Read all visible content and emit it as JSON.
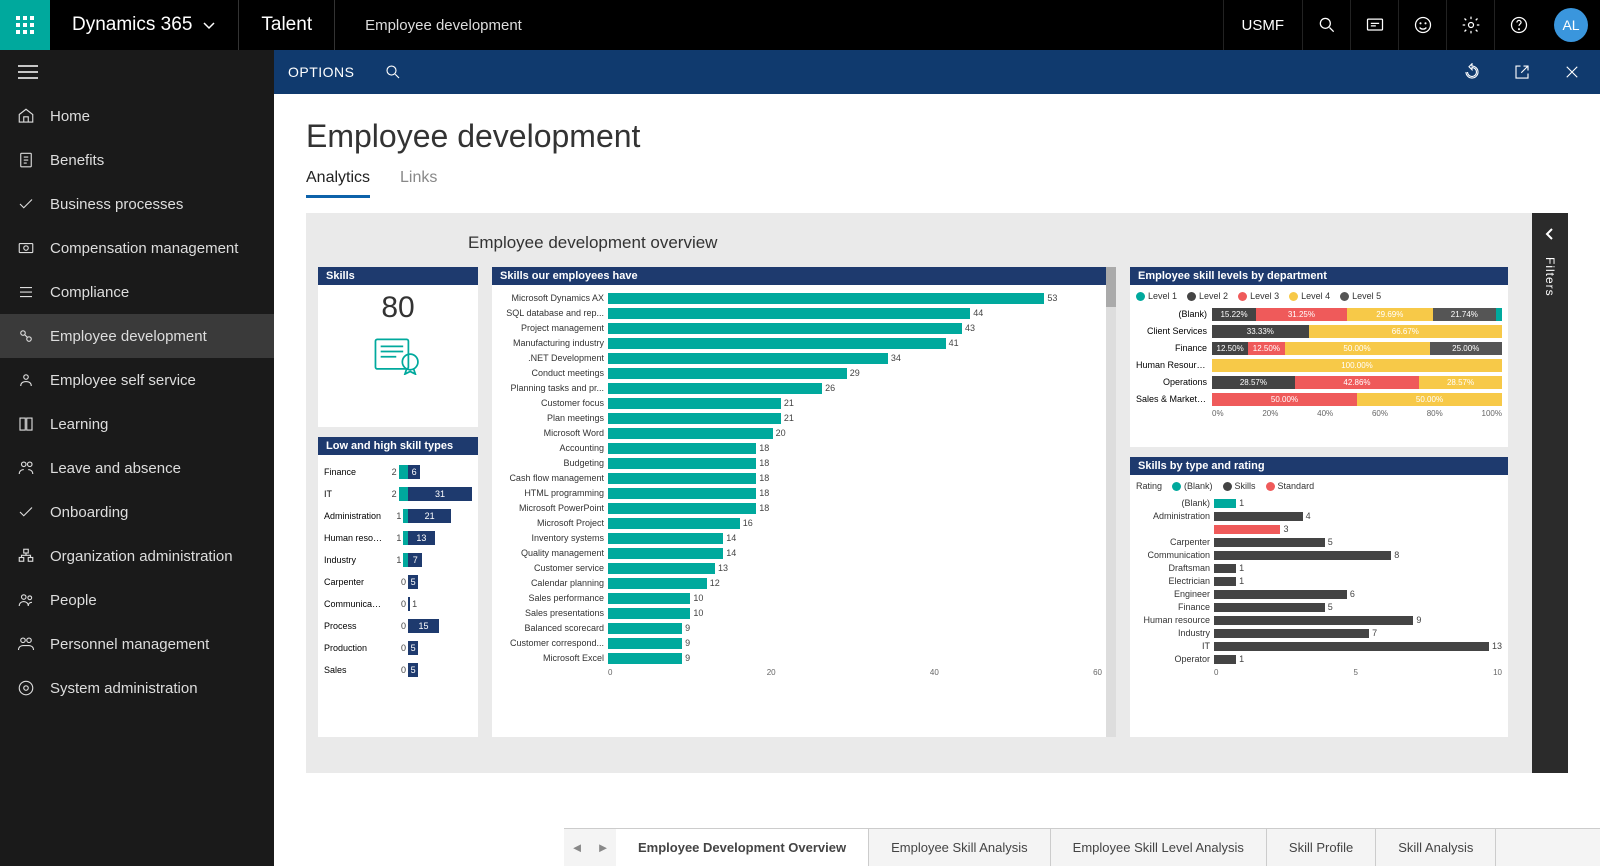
{
  "topbar": {
    "brand": "Dynamics 365",
    "module": "Talent",
    "breadcrumb": "Employee development",
    "company": "USMF",
    "avatar_initials": "AL"
  },
  "sidebar": {
    "items": [
      {
        "label": "Home",
        "icon": "home"
      },
      {
        "label": "Benefits",
        "icon": "doc"
      },
      {
        "label": "Business processes",
        "icon": "check"
      },
      {
        "label": "Compensation management",
        "icon": "money"
      },
      {
        "label": "Compliance",
        "icon": "list"
      },
      {
        "label": "Employee development",
        "icon": "dev",
        "active": true
      },
      {
        "label": "Employee self service",
        "icon": "self"
      },
      {
        "label": "Learning",
        "icon": "book"
      },
      {
        "label": "Leave and absence",
        "icon": "leave"
      },
      {
        "label": "Onboarding",
        "icon": "check"
      },
      {
        "label": "Organization administration",
        "icon": "org"
      },
      {
        "label": "People",
        "icon": "people"
      },
      {
        "label": "Personnel management",
        "icon": "personnel"
      },
      {
        "label": "System administration",
        "icon": "system"
      }
    ]
  },
  "subbar": {
    "options": "OPTIONS"
  },
  "page": {
    "title": "Employee development",
    "tabs": [
      {
        "label": "Analytics",
        "active": true
      },
      {
        "label": "Links",
        "active": false
      }
    ],
    "dashboard_title": "Employee development overview"
  },
  "kpi_skills": {
    "header": "Skills",
    "value": "80"
  },
  "low_high": {
    "header": "Low and high skill types",
    "color_low": "#00a99d",
    "color_high": "#1e3a6e",
    "max": 31,
    "rows": [
      {
        "label": "Finance",
        "low": 2,
        "high": 6
      },
      {
        "label": "IT",
        "low": 2,
        "high": 31
      },
      {
        "label": "Administration",
        "low": 1,
        "high": 21
      },
      {
        "label": "Human resou...",
        "low": 1,
        "high": 13
      },
      {
        "label": "Industry",
        "low": 1,
        "high": 7
      },
      {
        "label": "Carpenter",
        "low": 0,
        "high": 5
      },
      {
        "label": "Communication",
        "low": 0,
        "high": 1
      },
      {
        "label": "Process",
        "low": 0,
        "high": 15
      },
      {
        "label": "Production",
        "low": 0,
        "high": 5
      },
      {
        "label": "Sales",
        "low": 0,
        "high": 5
      }
    ]
  },
  "skills_have": {
    "header": "Skills our employees have",
    "color": "#00a99d",
    "max": 60,
    "xticks": [
      "0",
      "20",
      "40",
      "60"
    ],
    "rows": [
      {
        "label": "Microsoft Dynamics AX",
        "value": 53
      },
      {
        "label": "SQL database and rep...",
        "value": 44
      },
      {
        "label": "Project management",
        "value": 43
      },
      {
        "label": "Manufacturing industry",
        "value": 41
      },
      {
        "label": ".NET Development",
        "value": 34
      },
      {
        "label": "Conduct meetings",
        "value": 29
      },
      {
        "label": "Planning tasks and pr...",
        "value": 26
      },
      {
        "label": "Customer focus",
        "value": 21
      },
      {
        "label": "Plan meetings",
        "value": 21
      },
      {
        "label": "Microsoft Word",
        "value": 20
      },
      {
        "label": "Accounting",
        "value": 18
      },
      {
        "label": "Budgeting",
        "value": 18
      },
      {
        "label": "Cash flow management",
        "value": 18
      },
      {
        "label": "HTML programming",
        "value": 18
      },
      {
        "label": "Microsoft PowerPoint",
        "value": 18
      },
      {
        "label": "Microsoft Project",
        "value": 16
      },
      {
        "label": "Inventory systems",
        "value": 14
      },
      {
        "label": "Quality management",
        "value": 14
      },
      {
        "label": "Customer service",
        "value": 13
      },
      {
        "label": "Calendar planning",
        "value": 12
      },
      {
        "label": "Sales performance",
        "value": 10
      },
      {
        "label": "Sales presentations",
        "value": 10
      },
      {
        "label": "Balanced scorecard",
        "value": 9
      },
      {
        "label": "Customer correspond...",
        "value": 9
      },
      {
        "label": "Microsoft Excel",
        "value": 9
      }
    ]
  },
  "skill_levels": {
    "header": "Employee skill levels by department",
    "legend": [
      {
        "label": "Level 1",
        "color": "#00a99d"
      },
      {
        "label": "Level 2",
        "color": "#444444"
      },
      {
        "label": "Level 3",
        "color": "#ef5a5a"
      },
      {
        "label": "Level 4",
        "color": "#f7c948"
      },
      {
        "label": "Level 5",
        "color": "#555555"
      }
    ],
    "xticks": [
      "0%",
      "20%",
      "40%",
      "60%",
      "80%",
      "100%"
    ],
    "rows": [
      {
        "label": "(Blank)",
        "segs": [
          {
            "pct": 15.22,
            "txt": "15.22%",
            "color": "#444444"
          },
          {
            "pct": 31.25,
            "txt": "31.25%",
            "color": "#ef5a5a"
          },
          {
            "pct": 29.69,
            "txt": "29.69%",
            "color": "#f7c948"
          },
          {
            "pct": 21.74,
            "txt": "21.74%",
            "color": "#555555"
          },
          {
            "pct": 2.1,
            "txt": "",
            "color": "#00a99d"
          }
        ]
      },
      {
        "label": "Client Services",
        "segs": [
          {
            "pct": 33.33,
            "txt": "33.33%",
            "color": "#444444"
          },
          {
            "pct": 66.67,
            "txt": "66.67%",
            "color": "#f7c948"
          }
        ]
      },
      {
        "label": "Finance",
        "segs": [
          {
            "pct": 12.5,
            "txt": "12.50%",
            "color": "#444444"
          },
          {
            "pct": 12.5,
            "txt": "12.50%",
            "color": "#ef5a5a"
          },
          {
            "pct": 50.0,
            "txt": "50.00%",
            "color": "#f7c948"
          },
          {
            "pct": 25.0,
            "txt": "25.00%",
            "color": "#555555"
          }
        ]
      },
      {
        "label": "Human Resources",
        "segs": [
          {
            "pct": 100.0,
            "txt": "100.00%",
            "color": "#f7c948"
          }
        ]
      },
      {
        "label": "Operations",
        "segs": [
          {
            "pct": 28.57,
            "txt": "28.57%",
            "color": "#444444"
          },
          {
            "pct": 42.86,
            "txt": "42.86%",
            "color": "#ef5a5a"
          },
          {
            "pct": 28.57,
            "txt": "28.57%",
            "color": "#f7c948"
          }
        ]
      },
      {
        "label": "Sales & Marketing",
        "segs": [
          {
            "pct": 50.0,
            "txt": "50.00%",
            "color": "#ef5a5a"
          },
          {
            "pct": 50.0,
            "txt": "50.00%",
            "color": "#f7c948"
          }
        ]
      }
    ]
  },
  "skills_rating": {
    "header": "Skills by type and rating",
    "legend_label": "Rating",
    "legend": [
      {
        "label": "(Blank)",
        "color": "#00a99d"
      },
      {
        "label": "Skills",
        "color": "#444444"
      },
      {
        "label": "Standard",
        "color": "#ef5a5a"
      }
    ],
    "max": 13,
    "xticks": [
      "0",
      "5",
      "10"
    ],
    "rows": [
      {
        "label": "(Blank)",
        "bars": [
          {
            "v": 1,
            "color": "#00a99d"
          }
        ]
      },
      {
        "label": "Administration",
        "bars": [
          {
            "v": 4,
            "color": "#444444"
          },
          {
            "v": 3,
            "color": "#ef5a5a"
          }
        ]
      },
      {
        "label": "Carpenter",
        "bars": [
          {
            "v": 5,
            "color": "#444444"
          }
        ]
      },
      {
        "label": "Communication",
        "bars": [
          {
            "v": 8,
            "color": "#444444"
          }
        ]
      },
      {
        "label": "Draftsman",
        "bars": [
          {
            "v": 1,
            "color": "#444444"
          }
        ]
      },
      {
        "label": "Electrician",
        "bars": [
          {
            "v": 1,
            "color": "#444444"
          }
        ]
      },
      {
        "label": "Engineer",
        "bars": [
          {
            "v": 6,
            "color": "#444444"
          }
        ]
      },
      {
        "label": "Finance",
        "bars": [
          {
            "v": 5,
            "color": "#444444"
          }
        ]
      },
      {
        "label": "Human resource",
        "bars": [
          {
            "v": 9,
            "color": "#444444"
          }
        ]
      },
      {
        "label": "Industry",
        "bars": [
          {
            "v": 7,
            "color": "#444444"
          }
        ]
      },
      {
        "label": "IT",
        "bars": [
          {
            "v": 13,
            "color": "#444444"
          }
        ]
      },
      {
        "label": "Operator",
        "bars": [
          {
            "v": 1,
            "color": "#444444"
          }
        ]
      }
    ]
  },
  "bottom_tabs": {
    "items": [
      {
        "label": "Employee Development Overview",
        "active": true
      },
      {
        "label": "Employee Skill Analysis"
      },
      {
        "label": "Employee Skill Level Analysis"
      },
      {
        "label": "Skill Profile"
      },
      {
        "label": "Skill Analysis"
      }
    ]
  },
  "filters_label": "Filters"
}
